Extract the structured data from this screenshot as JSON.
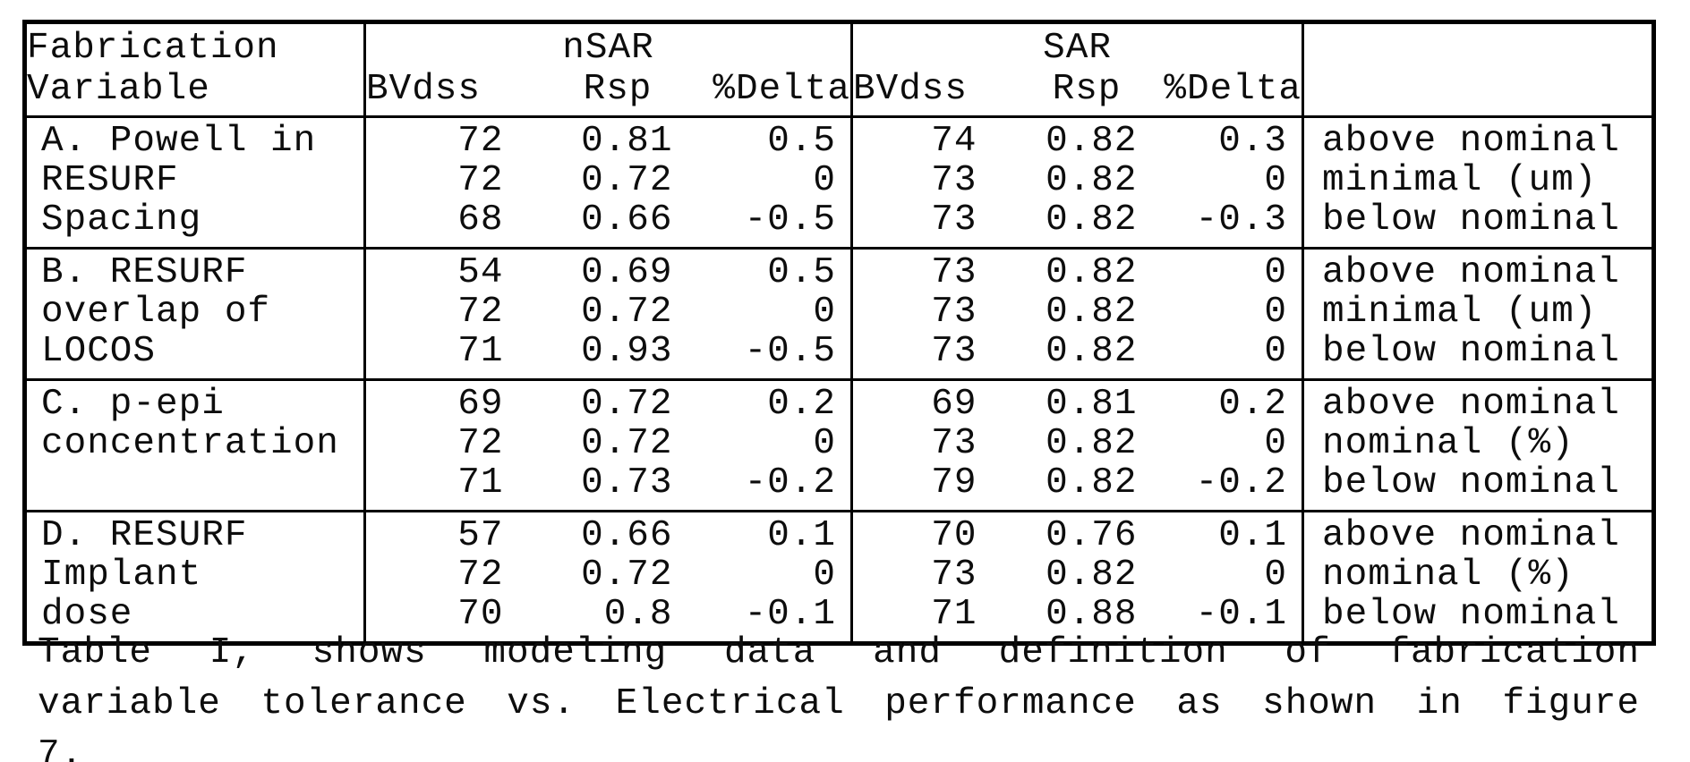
{
  "table": {
    "header": {
      "variable_line1": "Fabrication",
      "variable_line2": "Variable",
      "group_nsar": "nSAR",
      "group_sar": "SAR",
      "sub_bvdss": "BVdss",
      "sub_rsp": "Rsp",
      "sub_delta": "%Delta"
    },
    "sections": [
      {
        "variable_lines": [
          "A. Powell in",
          "RESURF",
          "Spacing"
        ],
        "rows": [
          {
            "nsar": [
              "72",
              "0.81",
              "0.5"
            ],
            "sar": [
              "74",
              "0.82",
              "0.3"
            ],
            "desc": "above nominal"
          },
          {
            "nsar": [
              "72",
              "0.72",
              "0"
            ],
            "sar": [
              "73",
              "0.82",
              "0"
            ],
            "desc": "minimal (um)"
          },
          {
            "nsar": [
              "68",
              "0.66",
              "-0.5"
            ],
            "sar": [
              "73",
              "0.82",
              "-0.3"
            ],
            "desc": "below nominal"
          }
        ]
      },
      {
        "variable_lines": [
          "B. RESURF",
          "overlap of",
          "LOCOS"
        ],
        "rows": [
          {
            "nsar": [
              "54",
              "0.69",
              "0.5"
            ],
            "sar": [
              "73",
              "0.82",
              "0"
            ],
            "desc": "above nominal"
          },
          {
            "nsar": [
              "72",
              "0.72",
              "0"
            ],
            "sar": [
              "73",
              "0.82",
              "0"
            ],
            "desc": "minimal (um)"
          },
          {
            "nsar": [
              "71",
              "0.93",
              "-0.5"
            ],
            "sar": [
              "73",
              "0.82",
              "0"
            ],
            "desc": "below nominal"
          }
        ]
      },
      {
        "variable_lines": [
          "C. p-epi",
          "concentration",
          ""
        ],
        "rows": [
          {
            "nsar": [
              "69",
              "0.72",
              "0.2"
            ],
            "sar": [
              "69",
              "0.81",
              "0.2"
            ],
            "desc": "above nominal"
          },
          {
            "nsar": [
              "72",
              "0.72",
              "0"
            ],
            "sar": [
              "73",
              "0.82",
              "0"
            ],
            "desc": "nominal (%)"
          },
          {
            "nsar": [
              "71",
              "0.73",
              "-0.2"
            ],
            "sar": [
              "79",
              "0.82",
              "-0.2"
            ],
            "desc": "below nominal"
          }
        ]
      },
      {
        "variable_lines": [
          "D. RESURF",
          "Implant",
          "dose"
        ],
        "rows": [
          {
            "nsar": [
              "57",
              "0.66",
              "0.1"
            ],
            "sar": [
              "70",
              "0.76",
              "0.1"
            ],
            "desc": "above nominal"
          },
          {
            "nsar": [
              "72",
              "0.72",
              "0"
            ],
            "sar": [
              "73",
              "0.82",
              "0"
            ],
            "desc": "nominal (%)"
          },
          {
            "nsar": [
              "70",
              "0.8",
              "-0.1"
            ],
            "sar": [
              "71",
              "0.88",
              "-0.1"
            ],
            "desc": "below nominal"
          }
        ]
      }
    ]
  },
  "caption": {
    "line1": "Table I, shows modeling data and definition of fabrication",
    "line2": "variable tolerance vs. Electrical performance as shown in figure",
    "line3": "7."
  }
}
